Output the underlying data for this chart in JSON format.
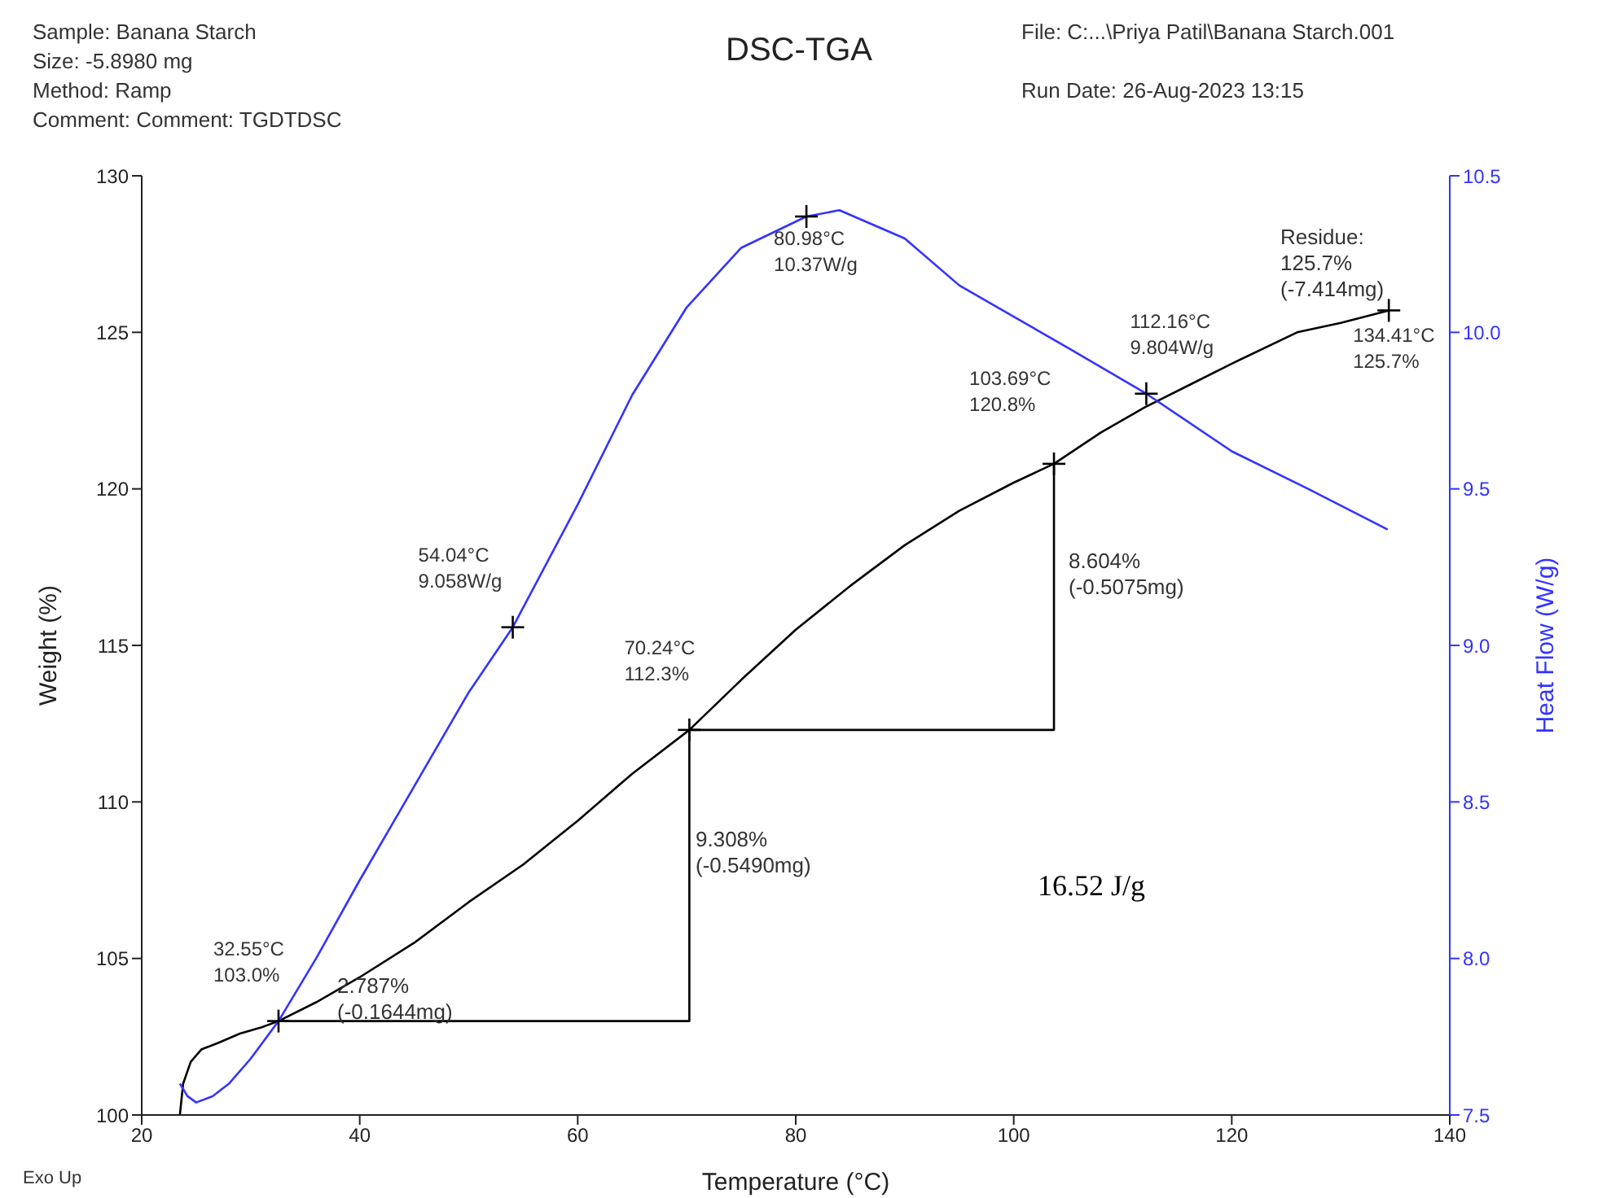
{
  "chart_data": {
    "type": "line",
    "title": "DSC-TGA",
    "xlabel": "Temperature (°C)",
    "ylabel": "Weight (%)",
    "y2label": "Heat Flow (W/g)",
    "xlim": [
      20,
      140
    ],
    "xticks": [
      20,
      40,
      60,
      80,
      100,
      120,
      140
    ],
    "ylim": [
      100,
      130
    ],
    "yticks": [
      100,
      105,
      110,
      115,
      120,
      125,
      130
    ],
    "y2lim": [
      7.5,
      10.5
    ],
    "y2ticks": [
      7.5,
      {
        "value": 8,
        "label": "8.0"
      },
      8.5,
      {
        "value": 9,
        "label": "9.0"
      },
      9.5,
      {
        "value": 10,
        "label": "10.0"
      },
      10.5
    ],
    "line_style": "solid",
    "series": [
      {
        "color": "#000000",
        "x": [
          23.5,
          23.8,
          24.5,
          25.5,
          27,
          29,
          31,
          32.55,
          36,
          40,
          45,
          50,
          55,
          60,
          65,
          70.24,
          75,
          80,
          85,
          90,
          95,
          100,
          103.69,
          108,
          112,
          116,
          120,
          126,
          130,
          134.41
        ],
        "values": [
          100,
          101,
          101.7,
          102.1,
          102.3,
          102.6,
          102.8,
          103.0,
          103.6,
          104.4,
          105.5,
          106.8,
          108.0,
          109.4,
          110.9,
          112.3,
          113.9,
          115.5,
          116.9,
          118.2,
          119.3,
          120.2,
          120.8,
          121.8,
          122.6,
          123.3,
          124.0,
          125.0,
          125.3,
          125.7
        ]
      },
      {
        "color": "#3333ff",
        "axis": "y2",
        "x": [
          23.5,
          24.2,
          25,
          26.5,
          28,
          30,
          32.55,
          36,
          40,
          45,
          50,
          54.04,
          60,
          65,
          70,
          75,
          80.98,
          84,
          90,
          95,
          100,
          105,
          112.16,
          120,
          127,
          134.3
        ],
        "values": [
          7.6,
          7.56,
          7.54,
          7.56,
          7.6,
          7.68,
          7.8,
          8.0,
          8.25,
          8.55,
          8.85,
          9.058,
          9.45,
          9.8,
          10.08,
          10.27,
          10.37,
          10.39,
          10.3,
          10.15,
          10.05,
          9.95,
          9.804,
          9.62,
          9.5,
          9.37
        ]
      },
      {
        "color": "#000000",
        "x": [
          32.55,
          70.24,
          70.24,
          103.69,
          103.69
        ],
        "values": [
          103.0,
          103.0,
          112.3,
          112.3,
          120.8
        ]
      },
      {
        "type": "scatter",
        "color": "#000000",
        "marker": "cross",
        "x": [
          32.55,
          70.24,
          103.69,
          134.41
        ],
        "values": [
          103.0,
          112.3,
          120.8,
          125.7
        ],
        "value_labels": [
          "32.55°C\n103.0%",
          "70.24°C\n112.3%",
          "103.69°C\n120.8%",
          "134.41°C\n125.7%"
        ]
      },
      {
        "type": "scatter",
        "color": "#000000",
        "marker": "cross",
        "axis": "y2",
        "x": [
          54.04,
          80.98,
          112.16
        ],
        "values": [
          9.058,
          10.37,
          9.804
        ],
        "value_labels": [
          "54.04°C\n9.058W/g",
          "80.98°C\n10.37W/g",
          "112.16°C\n9.804W/g"
        ]
      }
    ],
    "annotations": [
      "Sample: Banana Starch",
      "Size:  -5.8980 mg",
      "Method: Ramp",
      "Comment: Comment: TGDTDSC",
      "File: C:...\\Priya Patil\\Banana Starch.001",
      "Run Date: 26-Aug-2023 13:15",
      "Exo Up",
      "2.787%\n(-0.1644mg)",
      "9.308%\n(-0.5490mg)",
      "8.604%\n(-0.5075mg)",
      "Residue:\n125.7%\n(-7.414mg)",
      "16.52 J/g"
    ]
  }
}
